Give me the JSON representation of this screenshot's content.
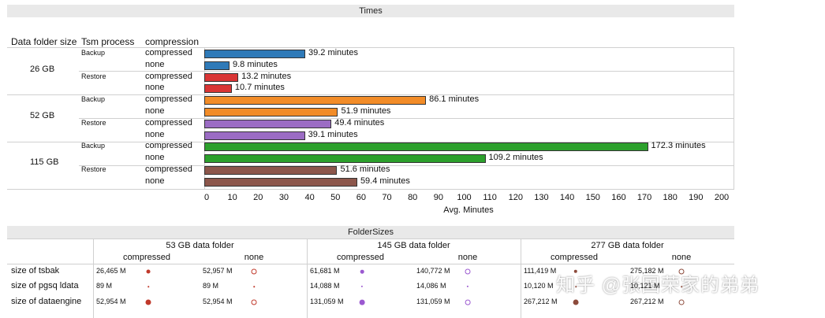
{
  "times": {
    "title": "Times",
    "headers": {
      "size": "Data folder size",
      "process": "Tsm process",
      "compression": "compression"
    },
    "axis_title": "Avg. Minutes",
    "ticks": [
      "0",
      "10",
      "20",
      "30",
      "40",
      "50",
      "60",
      "70",
      "80",
      "90",
      "100",
      "110",
      "120",
      "130",
      "140",
      "150",
      "160",
      "170",
      "180",
      "190",
      "200"
    ]
  },
  "chart_data": [
    {
      "type": "bar",
      "orientation": "horizontal",
      "title": "Times",
      "xlabel": "Avg. Minutes",
      "xlim": [
        0,
        200
      ],
      "rows": [
        {
          "size": "26 GB",
          "process": "Backup",
          "compression": "compressed",
          "value": 39.2,
          "label": "39.2 minutes",
          "color": "#2f7ab8"
        },
        {
          "size": "26 GB",
          "process": "Backup",
          "compression": "none",
          "value": 9.8,
          "label": "9.8 minutes",
          "color": "#2f7ab8"
        },
        {
          "size": "26 GB",
          "process": "Restore",
          "compression": "compressed",
          "value": 13.2,
          "label": "13.2 minutes",
          "color": "#d93535"
        },
        {
          "size": "26 GB",
          "process": "Restore",
          "compression": "none",
          "value": 10.7,
          "label": "10.7 minutes",
          "color": "#d93535"
        },
        {
          "size": "52 GB",
          "process": "Backup",
          "compression": "compressed",
          "value": 86.1,
          "label": "86.1 minutes",
          "color": "#f28c28"
        },
        {
          "size": "52 GB",
          "process": "Backup",
          "compression": "none",
          "value": 51.9,
          "label": "51.9 minutes",
          "color": "#f28c28"
        },
        {
          "size": "52 GB",
          "process": "Restore",
          "compression": "compressed",
          "value": 49.4,
          "label": "49.4 minutes",
          "color": "#9b6cc4"
        },
        {
          "size": "52 GB",
          "process": "Restore",
          "compression": "none",
          "value": 39.1,
          "label": "39.1 minutes",
          "color": "#9b6cc4"
        },
        {
          "size": "115 GB",
          "process": "Backup",
          "compression": "compressed",
          "value": 172.3,
          "label": "172.3 minutes",
          "color": "#2ca02c"
        },
        {
          "size": "115 GB",
          "process": "Backup",
          "compression": "none",
          "value": 109.2,
          "label": "109.2 minutes",
          "color": "#2ca02c"
        },
        {
          "size": "115 GB",
          "process": "Restore",
          "compression": "compressed",
          "value": 51.6,
          "label": "51.6 minutes",
          "color": "#8c564b"
        },
        {
          "size": "115 GB",
          "process": "Restore",
          "compression": "none",
          "value": 59.4,
          "label": "59.4 minutes",
          "color": "#8c564b"
        }
      ]
    },
    {
      "type": "scatter",
      "title": "FolderSizes",
      "folders": [
        {
          "name": "53 GB data folder",
          "dot_color": "#c0392b",
          "rows": [
            {
              "metric": "size of tsbak",
              "compressed": "26,465 M",
              "none": "52,957 M",
              "compressed_value": 26465,
              "none_value": 52957
            },
            {
              "metric": "size of pgsq ldata",
              "compressed": "89 M",
              "none": "89 M",
              "compressed_value": 89,
              "none_value": 89
            },
            {
              "metric": "size of dataengine",
              "compressed": "52,954 M",
              "none": "52,954 M",
              "compressed_value": 52954,
              "none_value": 52954
            }
          ]
        },
        {
          "name": "145 GB data folder",
          "dot_color": "#9b59d0",
          "rows": [
            {
              "metric": "size of tsbak",
              "compressed": "61,681 M",
              "none": "140,772 M",
              "compressed_value": 61681,
              "none_value": 140772
            },
            {
              "metric": "size of pgsq ldata",
              "compressed": "14,088 M",
              "none": "14,086 M",
              "compressed_value": 14088,
              "none_value": 14086
            },
            {
              "metric": "size of dataengine",
              "compressed": "131,059 M",
              "none": "131,059 M",
              "compressed_value": 131059,
              "none_value": 131059
            }
          ]
        },
        {
          "name": "277 GB data folder",
          "dot_color": "#8c4a3b",
          "rows": [
            {
              "metric": "size of tsbak",
              "compressed": "111,419 M",
              "none": "275,182 M",
              "compressed_value": 111419,
              "none_value": 275182
            },
            {
              "metric": "size of pgsq ldata",
              "compressed": "10,120 M",
              "none": "10,121 M",
              "compressed_value": 10120,
              "none_value": 10121
            },
            {
              "metric": "size of dataengine",
              "compressed": "267,212 M",
              "none": "267,212 M",
              "compressed_value": 267212,
              "none_value": 267212
            }
          ]
        }
      ]
    }
  ],
  "folder_sizes": {
    "title": "FolderSizes",
    "compressed_label": "compressed",
    "none_label": "none",
    "metrics": [
      "size of tsbak",
      "size of pgsq ldata",
      "size of dataengine"
    ]
  },
  "watermark": "知乎 @张国荣家的弟弟"
}
